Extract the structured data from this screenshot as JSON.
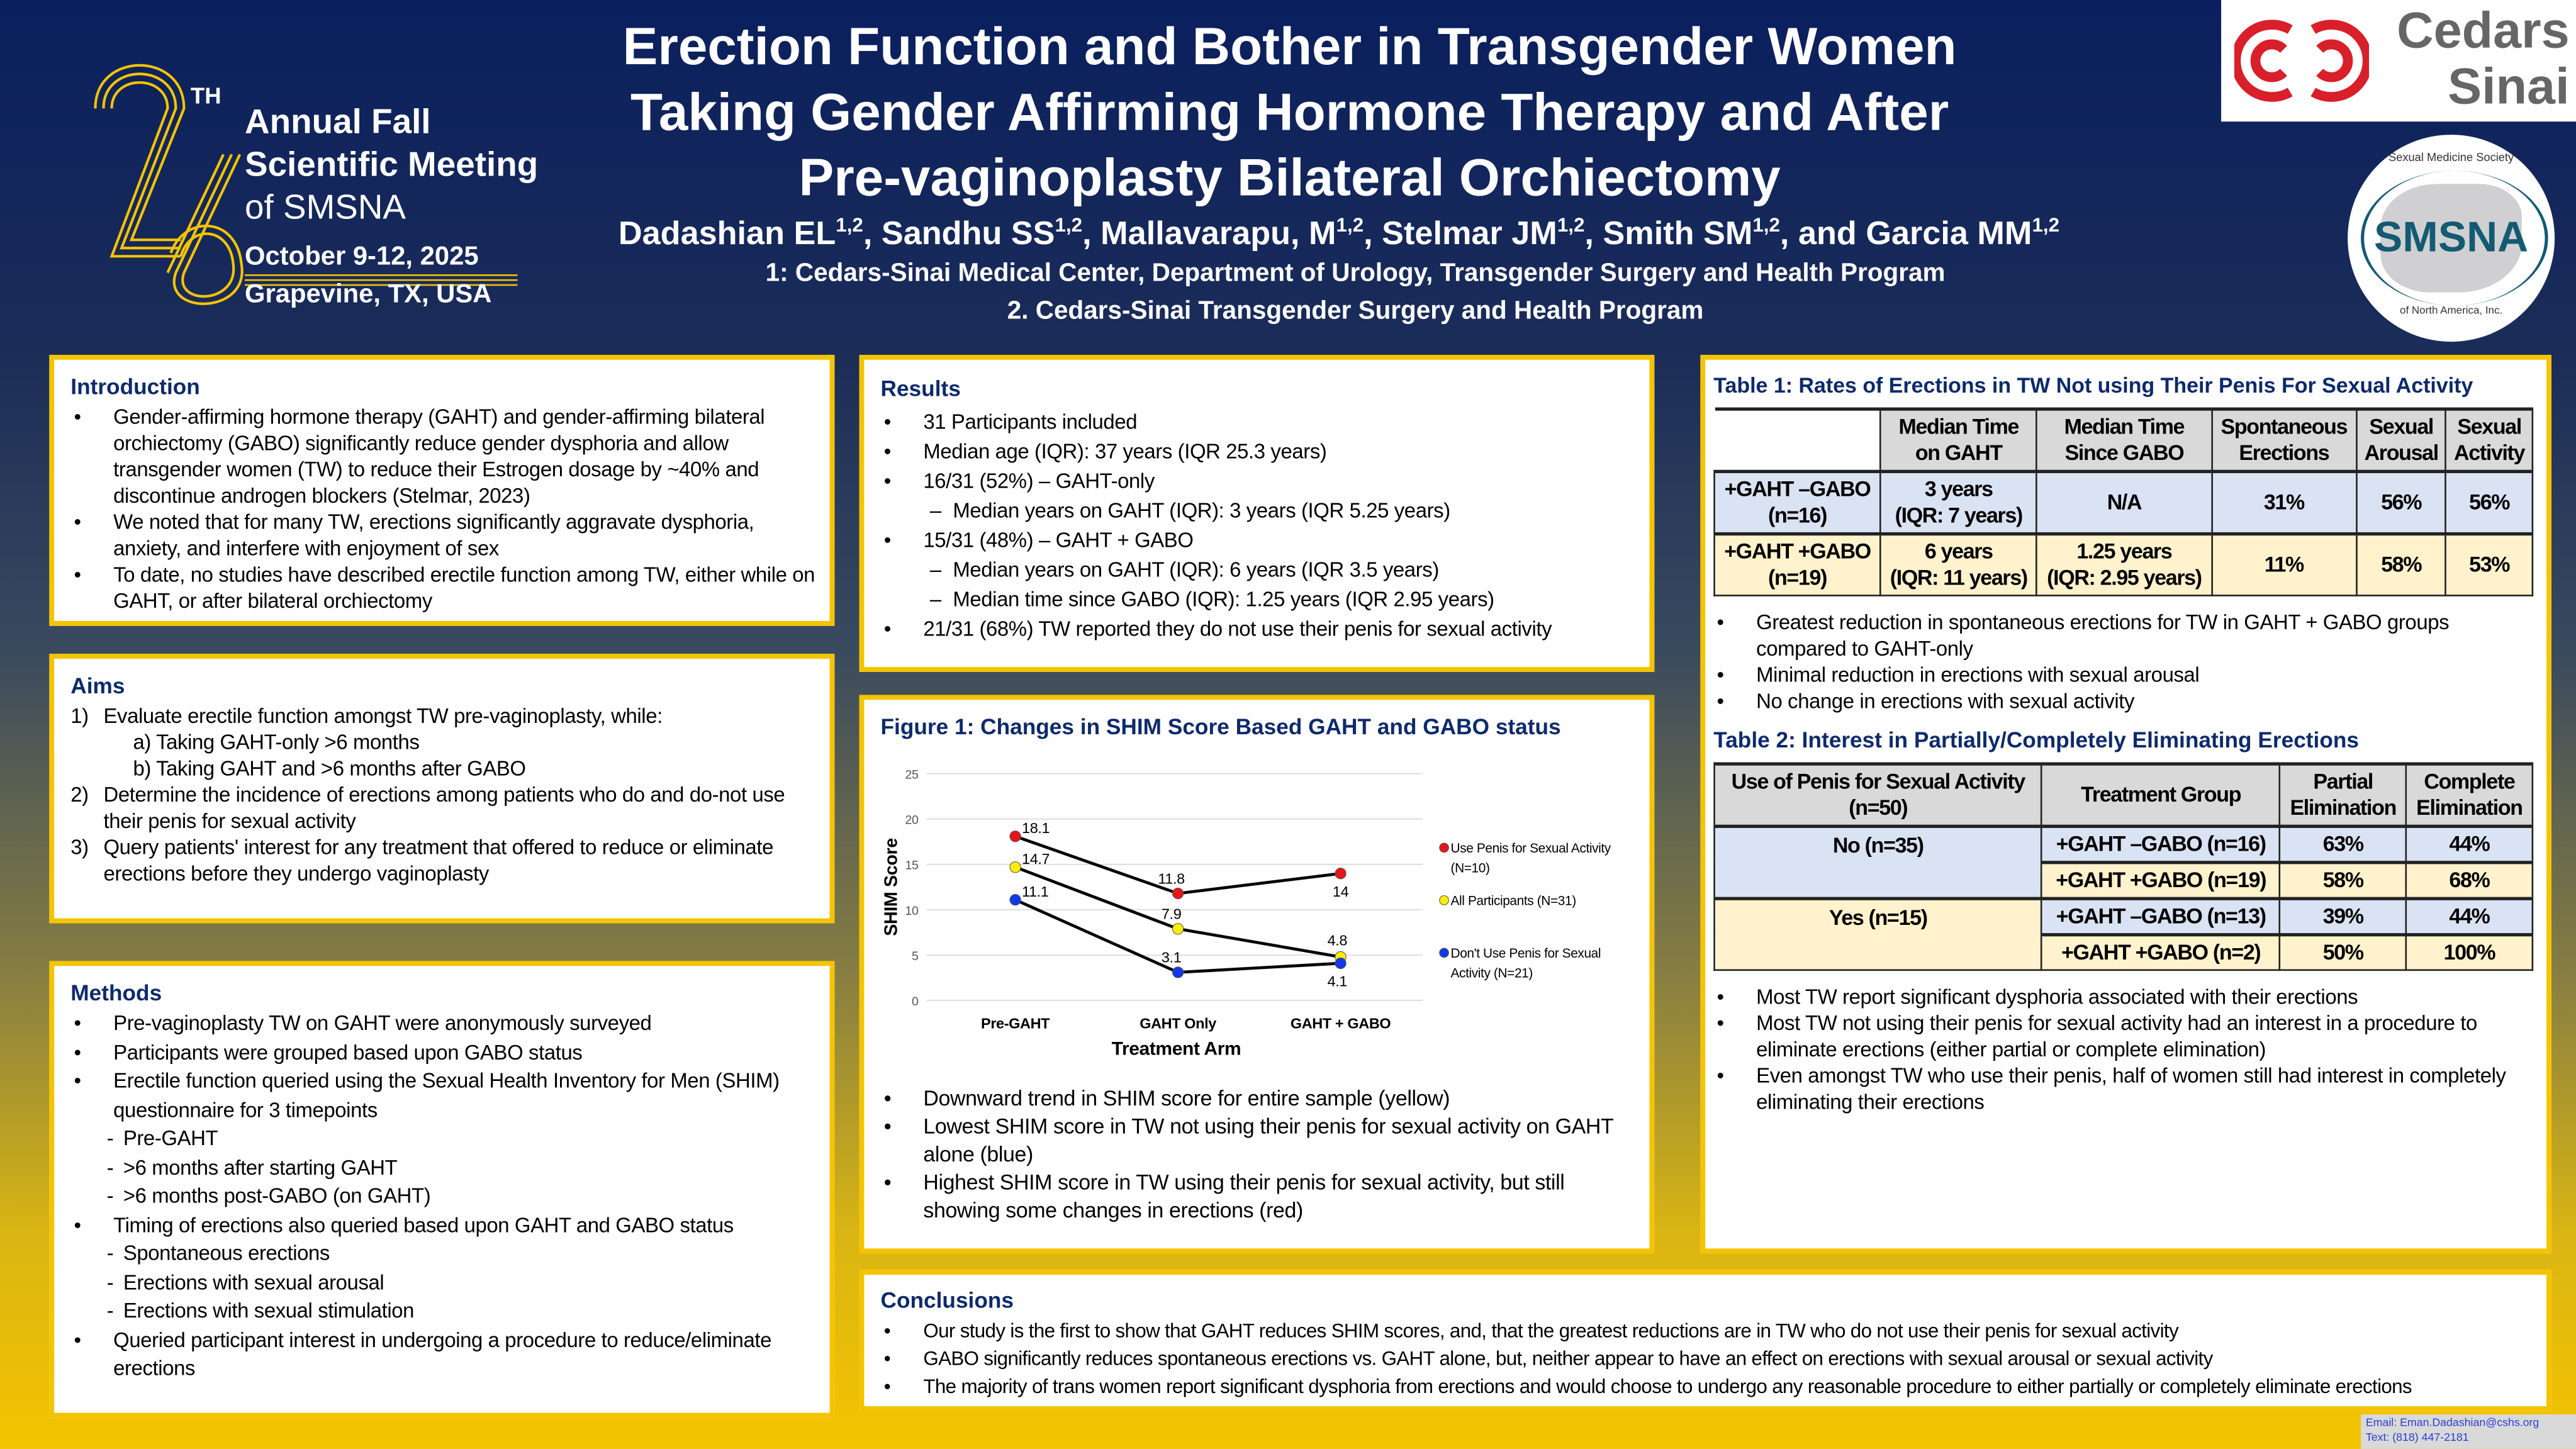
{
  "meeting": {
    "ordinal_suffix": "TH",
    "number": "26",
    "line1": "Annual Fall",
    "line2": "Scientific Meeting",
    "line3": "of SMSNA",
    "dates": "October 9-12, 2025",
    "location": "Grapevine, TX, USA"
  },
  "title": {
    "line1": "Erection Function and Bother in Transgender Women",
    "line2": "Taking Gender Affirming Hormone Therapy and After",
    "line3": "Pre-vaginoplasty Bilateral Orchiectomy"
  },
  "authors": [
    {
      "name": "Dadashian EL",
      "sup": "1,2",
      "sep": ", "
    },
    {
      "name": "Sandhu SS",
      "sup": "1,2",
      "sep": ", "
    },
    {
      "name": "Mallavarapu, M",
      "sup": "1,2",
      "sep": ", "
    },
    {
      "name": "Stelmar JM",
      "sup": "1,2",
      "sep": ", "
    },
    {
      "name": "Smith SM",
      "sup": "1,2",
      "sep": ", and "
    },
    {
      "name": "Garcia MM",
      "sup": "1,2",
      "sep": ""
    }
  ],
  "affiliations": [
    "1: Cedars-Sinai Medical Center, Department of Urology, Transgender Surgery and Health Program",
    "2.  Cedars-Sinai Transgender Surgery and Health Program"
  ],
  "logos": {
    "cedars": {
      "line1": "Cedars",
      "line2": "Sinai",
      "red": "#d81f2a"
    },
    "smsna": {
      "top": "Sexual Medicine Society",
      "center": "SMSNA",
      "bottom": "of North America, Inc.",
      "teal": "#135a72"
    }
  },
  "colors": {
    "heading": "#0d2a6b",
    "border": "#f4c400",
    "navy": "#0a1f5e"
  },
  "introduction": {
    "heading": "Introduction",
    "bullets": [
      "Gender-affirming hormone therapy (GAHT) and gender-affirming bilateral orchiectomy (GABO) significantly reduce gender dysphoria and allow transgender women (TW) to reduce their Estrogen dosage by ~40% and discontinue androgen blockers (Stelmar, 2023)",
      "We noted that for many TW, erections significantly aggravate dysphoria, anxiety, and interfere with enjoyment of sex",
      "To date, no studies have described erectile function among TW, either while on GAHT, or after bilateral orchiectomy"
    ]
  },
  "aims": {
    "heading": "Aims",
    "items": [
      {
        "num": "1)",
        "text": "Evaluate erectile function amongst TW pre-vaginoplasty, while:"
      },
      {
        "num": "",
        "text": "a) Taking GAHT-only >6 months"
      },
      {
        "num": "",
        "text": "b) Taking GAHT and >6 months after GABO"
      },
      {
        "num": "2)",
        "text": "Determine the incidence of erections among patients who do and do-not use their penis for sexual activity"
      },
      {
        "num": "3)",
        "text": "Query patients' interest for any treatment that offered to reduce or eliminate erections before they undergo vaginoplasty"
      }
    ]
  },
  "methods": {
    "heading": "Methods",
    "items": [
      {
        "kind": "b",
        "text": "Pre-vaginoplasty TW on GAHT were anonymously surveyed"
      },
      {
        "kind": "b",
        "text": "Participants were grouped based upon GABO status"
      },
      {
        "kind": "b",
        "text": "Erectile function queried using the Sexual Health Inventory for Men (SHIM) questionnaire for 3 timepoints"
      },
      {
        "kind": "h",
        "text": "Pre-GAHT"
      },
      {
        "kind": "h",
        "text": ">6 months after starting GAHT"
      },
      {
        "kind": "h",
        "text": ">6 months post-GABO (on GAHT)"
      },
      {
        "kind": "b",
        "text": "Timing of erections also queried based upon GAHT and GABO status"
      },
      {
        "kind": "h",
        "text": "Spontaneous erections"
      },
      {
        "kind": "h",
        "text": "Erections with sexual arousal"
      },
      {
        "kind": "h",
        "text": "Erections with sexual stimulation"
      },
      {
        "kind": "b",
        "text": "Queried participant interest in undergoing a procedure to reduce/eliminate erections"
      }
    ]
  },
  "results": {
    "heading": "Results",
    "items": [
      {
        "kind": "b",
        "text": "31 Participants included"
      },
      {
        "kind": "b",
        "text": "Median age (IQR): 37 years (IQR 25.3 years)"
      },
      {
        "kind": "b",
        "text": "16/31 (52%) – GAHT-only"
      },
      {
        "kind": "d",
        "text": "Median years on GAHT (IQR): 3 years (IQR 5.25 years)"
      },
      {
        "kind": "b",
        "text": "15/31 (48%) – GAHT + GABO"
      },
      {
        "kind": "d",
        "text": "Median years on GAHT (IQR): 6 years (IQR 3.5 years)"
      },
      {
        "kind": "d",
        "text": "Median time since GABO (IQR): 1.25 years (IQR 2.95 years)"
      },
      {
        "kind": "b",
        "text": "21/31 (68%) TW reported they do not use their penis for sexual activity"
      }
    ]
  },
  "figure": {
    "heading": "Figure 1: Changes in SHIM Score Based GAHT and GABO status",
    "bullets": [
      "Downward trend in SHIM score for entire sample (yellow)",
      "Lowest SHIM score in TW not using their penis for sexual activity on GAHT alone (blue)",
      "Highest SHIM score in TW using their penis for sexual activity, but still showing some changes in erections (red)"
    ]
  },
  "chart_data": {
    "type": "line",
    "title": "",
    "xlabel": "Treatment Arm",
    "ylabel": "SHIM Score",
    "ylim": [
      0,
      25
    ],
    "yticks": [
      "0",
      "5",
      "10",
      "15",
      "20",
      "25"
    ],
    "grid": true,
    "legend": "right",
    "categories": [
      "Pre-GAHT",
      "GAHT Only",
      "GAHT + GABO"
    ],
    "series": [
      {
        "name": "Use Penis for Sexual Activity (N=10)",
        "legend_lines": [
          "Use Penis for Sexual Activity",
          "(N=10)"
        ],
        "color": "#e8141c",
        "values": [
          18.1,
          11.8,
          14
        ],
        "labels": [
          "18.1",
          "11.8",
          "14"
        ]
      },
      {
        "name": "All Participants (N=31)",
        "legend_lines": [
          "All Participants (N=31)"
        ],
        "color": "#ffee00",
        "values": [
          14.7,
          7.9,
          4.8
        ],
        "labels": [
          "14.7",
          "7.9",
          "4.8"
        ]
      },
      {
        "name": "Don't Use Penis for Sexual Activity (N=21)",
        "legend_lines": [
          "Don't Use Penis for Sexual",
          "Activity (N=21)"
        ],
        "color": "#1238e8",
        "values": [
          11.1,
          3.1,
          4.1
        ],
        "labels": [
          "11.1",
          "3.1",
          "4.1"
        ]
      }
    ]
  },
  "table1": {
    "heading": "Table 1: Rates of Erections in TW Not using Their Penis For Sexual Activity",
    "columns": [
      [
        "Median Time",
        "on GAHT"
      ],
      [
        "Median Time",
        "Since GABO"
      ],
      [
        "Spontaneous",
        "Erections"
      ],
      [
        "Sexual",
        "Arousal"
      ],
      [
        "Sexual",
        "Activity"
      ]
    ],
    "rows": [
      {
        "group": [
          "+GAHT –GABO",
          "(n=16)"
        ],
        "cells": [
          [
            "3 years",
            "(IQR: 7 years)"
          ],
          [
            "N/A"
          ],
          [
            "31%"
          ],
          [
            "56%"
          ],
          [
            "56%"
          ]
        ]
      },
      {
        "group": [
          "+GAHT +GABO",
          "(n=19)"
        ],
        "cells": [
          [
            "6 years",
            "(IQR: 11 years)"
          ],
          [
            "1.25 years",
            "(IQR: 2.95 years)"
          ],
          [
            "11%"
          ],
          [
            "58%"
          ],
          [
            "53%"
          ]
        ]
      }
    ],
    "bullets": [
      "Greatest reduction in spontaneous erections for TW in GAHT + GABO groups compared to GAHT-only",
      "Minimal reduction in erections with sexual arousal",
      "No change in erections with sexual activity"
    ]
  },
  "table2": {
    "heading": "Table 2: Interest in Partially/Completely Eliminating Erections",
    "columns": [
      [
        "Use of Penis for Sexual Activity",
        "(n=50)"
      ],
      [
        "Treatment Group"
      ],
      [
        "Partial",
        "Elimination"
      ],
      [
        "Complete",
        "Elimination"
      ]
    ],
    "groups": [
      {
        "label": "No (n=35)",
        "rows": [
          {
            "group": "+GAHT –GABO (n=16)",
            "partial": "63%",
            "complete": "44%"
          },
          {
            "group": "+GAHT +GABO (n=19)",
            "partial": "58%",
            "complete": "68%"
          }
        ]
      },
      {
        "label": "Yes (n=15)",
        "rows": [
          {
            "group": "+GAHT –GABO (n=13)",
            "partial": "39%",
            "complete": "44%"
          },
          {
            "group": "+GAHT +GABO (n=2)",
            "partial": "50%",
            "complete": "100%"
          }
        ]
      }
    ],
    "bullets": [
      "Most TW report significant dysphoria associated with their erections",
      "Most TW not using their penis for sexual activity had an interest in a procedure to eliminate erections (either partial or complete elimination)",
      "Even amongst TW who use their penis, half of women still had interest in completely eliminating their erections"
    ]
  },
  "conclusions": {
    "heading": "Conclusions",
    "bullets": [
      "Our study is the first to show that GAHT reduces SHIM scores, and, that the greatest reductions are in TW who do not use their penis for sexual activity",
      "GABO significantly reduces spontaneous erections vs. GAHT alone, but, neither appear to have an effect on erections with sexual arousal or sexual activity",
      "The majority of trans women report significant dysphoria from erections and would choose to undergo any reasonable procedure to either partially or completely eliminate erections"
    ]
  },
  "contact": {
    "email": "Email:  Eman.Dadashian@cshs.org",
    "text": "Text: (818) 447-2181"
  }
}
